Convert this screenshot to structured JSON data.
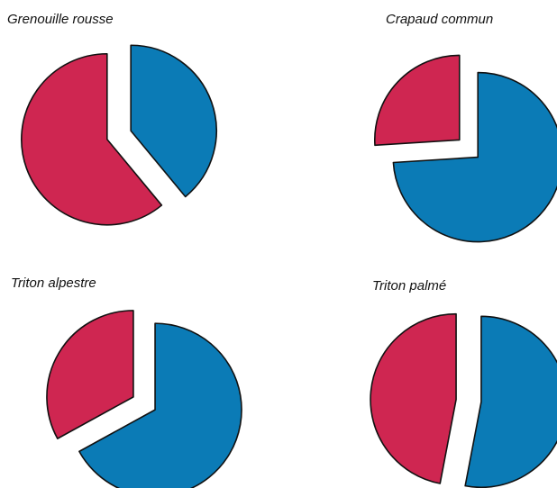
{
  "chart_data": [
    {
      "type": "pie",
      "title": "Grenouille rousse",
      "values": [
        39,
        61
      ],
      "colors": [
        "#0b7bb6",
        "#cf2651"
      ]
    },
    {
      "type": "pie",
      "title": "Crapaud commun",
      "values": [
        74,
        26
      ],
      "colors": [
        "#0b7bb6",
        "#cf2651"
      ]
    },
    {
      "type": "pie",
      "title": "Triton alpestre",
      "values": [
        67,
        33
      ],
      "colors": [
        "#0b7bb6",
        "#cf2651"
      ]
    },
    {
      "type": "pie",
      "title": "Triton palmé",
      "values": [
        53,
        47
      ],
      "colors": [
        "#0b7bb6",
        "#cf2651"
      ]
    }
  ]
}
